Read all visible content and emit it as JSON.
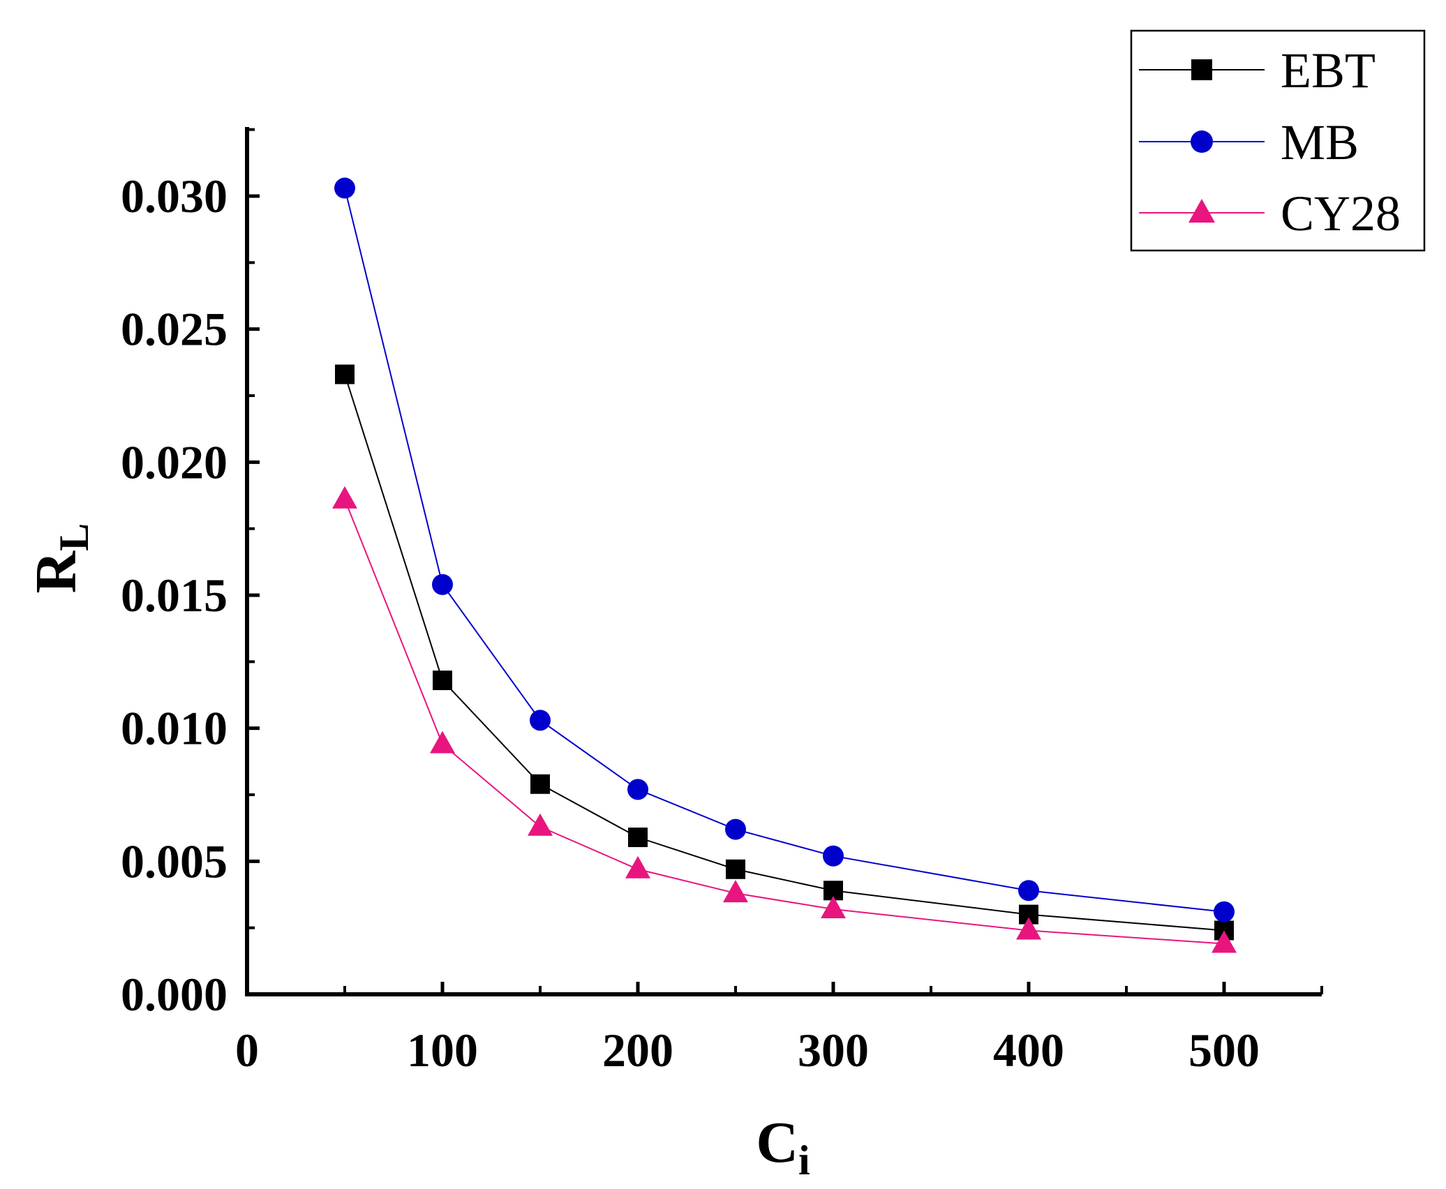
{
  "chart_data": {
    "type": "line",
    "title": "",
    "xlabel": {
      "main": "C",
      "sub": "i"
    },
    "ylabel": {
      "main": "R",
      "sub": "L"
    },
    "xlim": [
      0,
      550
    ],
    "ylim": [
      0,
      0.0325
    ],
    "xticks": [
      0,
      100,
      200,
      300,
      400,
      500
    ],
    "xtick_labels": [
      "0",
      "100",
      "200",
      "300",
      "400",
      "500"
    ],
    "yticks": [
      0,
      0.005,
      0.01,
      0.015,
      0.02,
      0.025,
      0.03
    ],
    "ytick_labels": [
      "0.000",
      "0.005",
      "0.010",
      "0.015",
      "0.020",
      "0.025",
      "0.030"
    ],
    "grid": false,
    "legend_position": "top-right",
    "x": [
      50,
      100,
      150,
      200,
      250,
      300,
      400,
      500
    ],
    "series": [
      {
        "name": "EBT",
        "marker": "square",
        "color": "#000000",
        "values": [
          0.0233,
          0.0118,
          0.0079,
          0.0059,
          0.0047,
          0.0039,
          0.003,
          0.0024
        ]
      },
      {
        "name": "MB",
        "marker": "circle",
        "color": "#0000cc",
        "values": [
          0.0303,
          0.0154,
          0.0103,
          0.0077,
          0.0062,
          0.0052,
          0.0039,
          0.0031
        ]
      },
      {
        "name": "CY28",
        "marker": "triangle",
        "color": "#e8157f",
        "values": [
          0.0186,
          0.0094,
          0.0063,
          0.0047,
          0.0038,
          0.0032,
          0.0024,
          0.0019
        ]
      }
    ]
  }
}
